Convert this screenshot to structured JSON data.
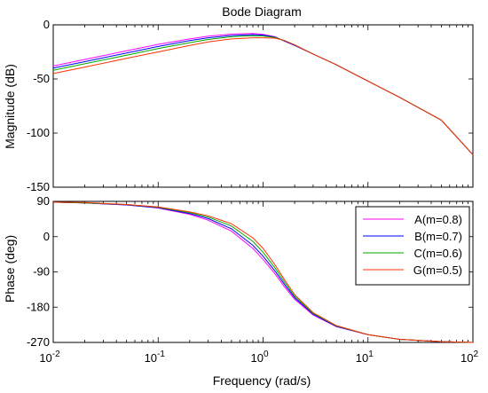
{
  "chart_data": [
    {
      "type": "line",
      "title": "Bode Diagram",
      "ylabel": "Magnitude (dB)",
      "xlabel": "",
      "xscale": "log",
      "xlim": [
        0.01,
        100
      ],
      "ylim": [
        -150,
        0
      ],
      "y_ticks": [
        "0",
        "-50",
        "-100",
        "-150"
      ],
      "x": [
        0.01,
        0.02,
        0.05,
        0.1,
        0.2,
        0.3,
        0.5,
        0.8,
        1.0,
        1.3,
        1.6,
        2.0,
        3.0,
        5.0,
        10,
        20,
        50,
        100
      ],
      "series": [
        {
          "name": "A(m=0.8)",
          "color": "#ff00ff",
          "values": [
            -38,
            -32,
            -24,
            -18,
            -13,
            -10.5,
            -8.5,
            -8,
            -8.8,
            -11,
            -15,
            -19,
            -27,
            -37,
            -52,
            -67,
            -88,
            -120
          ]
        },
        {
          "name": "B(m=0.7)",
          "color": "#0000ff",
          "values": [
            -40,
            -34,
            -26,
            -20,
            -14.5,
            -12,
            -9.8,
            -9,
            -9.5,
            -11.3,
            -15,
            -19,
            -27,
            -37,
            -52,
            -67,
            -88,
            -120
          ]
        },
        {
          "name": "C(m=0.6)",
          "color": "#00aa00",
          "values": [
            -42,
            -36,
            -28,
            -22,
            -16.5,
            -13.5,
            -11,
            -10,
            -10.3,
            -11.6,
            -14.5,
            -18.5,
            -27,
            -37,
            -52,
            -67,
            -88,
            -120
          ]
        },
        {
          "name": "G(m=0.5)",
          "color": "#ff3300",
          "values": [
            -45,
            -39,
            -31,
            -25,
            -19,
            -15.8,
            -13,
            -12,
            -12,
            -12.3,
            -14.5,
            -18.5,
            -27,
            -37,
            -52,
            -67,
            -88,
            -120
          ]
        }
      ]
    },
    {
      "type": "line",
      "title": "",
      "ylabel": "Phase (deg)",
      "xlabel": "Frequency  (rad/s)",
      "xscale": "log",
      "xlim": [
        0.01,
        100
      ],
      "ylim": [
        -270,
        90
      ],
      "x_ticks": [
        "10",
        "10",
        "10",
        "10",
        "10"
      ],
      "x_tick_exponents": [
        "-2",
        "-1",
        "0",
        "1",
        "2"
      ],
      "y_ticks": [
        "90",
        "0",
        "-90",
        "-180",
        "-270"
      ],
      "x": [
        0.01,
        0.02,
        0.05,
        0.1,
        0.2,
        0.3,
        0.5,
        0.8,
        1.0,
        1.3,
        1.6,
        2.0,
        3.0,
        5.0,
        10,
        20,
        50,
        100
      ],
      "series": [
        {
          "name": "A(m=0.8)",
          "color": "#ff00ff",
          "values": [
            88,
            86,
            81,
            73,
            57,
            42,
            14,
            -30,
            -58,
            -95,
            -128,
            -160,
            -200,
            -230,
            -250,
            -262,
            -268,
            -270
          ]
        },
        {
          "name": "B(m=0.7)",
          "color": "#0000ff",
          "values": [
            88,
            86,
            81,
            74,
            59,
            46,
            20,
            -22,
            -50,
            -88,
            -122,
            -156,
            -198,
            -229,
            -250,
            -262,
            -268,
            -270
          ]
        },
        {
          "name": "C(m=0.6)",
          "color": "#00aa00",
          "values": [
            88,
            86,
            82,
            75,
            61,
            50,
            27,
            -12,
            -40,
            -80,
            -116,
            -152,
            -196,
            -228,
            -250,
            -262,
            -268,
            -270
          ]
        },
        {
          "name": "G(m=0.5)",
          "color": "#ff3300",
          "values": [
            88,
            87,
            82,
            76,
            63,
            53,
            33,
            -3,
            -30,
            -72,
            -110,
            -148,
            -194,
            -227,
            -250,
            -262,
            -268,
            -270
          ]
        }
      ]
    }
  ]
}
